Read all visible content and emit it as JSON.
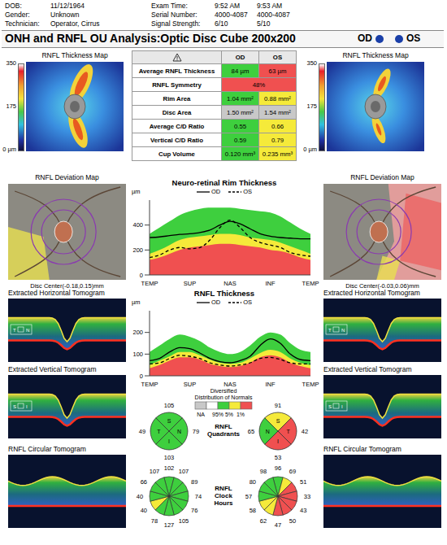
{
  "header": {
    "patient": [
      {
        "label": "DOB:",
        "value": "11/12/1964"
      },
      {
        "label": "Gender:",
        "value": "Unknown"
      },
      {
        "label": "Technician:",
        "value": "Operator, Cirrus"
      }
    ],
    "exam": [
      {
        "label": "Exam Time:",
        "od": "9:52 AM",
        "os": "9:53 AM"
      },
      {
        "label": "Serial Number:",
        "od": "4000-4087",
        "os": "4000-4087"
      },
      {
        "label": "Signal Strength:",
        "od": "6/10",
        "os": "5/10"
      }
    ]
  },
  "title": "ONH and RNFL OU Analysis:Optic Disc Cube 200x200",
  "panel_titles": {
    "thickness_map": "RNFL Thickness Map",
    "deviation_map": "RNFL Deviation Map",
    "horizontal_tomogram": "Extracted Horizontal Tomogram",
    "vertical_tomogram": "Extracted Vertical Tomogram",
    "circular_tomogram": "RNFL Circular Tomogram"
  },
  "thickness_colorbar": {
    "range": [
      0,
      350
    ],
    "ticks": [
      350,
      175,
      {
        "value": 0,
        "label": "0 µm"
      }
    ]
  },
  "tomogram_marks": {
    "horizontal": [
      "T",
      "N"
    ],
    "vertical": [
      "S",
      "I"
    ]
  },
  "table": {
    "rows": [
      {
        "label": "Average RNFL Thickness",
        "cells": [
          {
            "text": "84 µm",
            "color": "#3ecf3e"
          },
          {
            "text": "63 µm",
            "color": "#f05050"
          }
        ]
      },
      {
        "label": "RNFL Symmetry",
        "cells": [
          {
            "text": "48%",
            "color": "#f05050"
          }
        ]
      },
      {
        "label": "Rim Area",
        "cells": [
          {
            "text": "1.04 mm²",
            "color": "#3ecf3e"
          },
          {
            "text": "0.88 mm²",
            "color": "#f5ea3a"
          }
        ]
      },
      {
        "label": "Disc Area",
        "cells": [
          {
            "text": "1.50 mm²",
            "color": "#c8c8c8"
          },
          {
            "text": "1.54 mm²",
            "color": "#c8c8c8"
          }
        ]
      },
      {
        "label": "Average C/D Ratio",
        "cells": [
          {
            "text": "0.55",
            "color": "#3ecf3e"
          },
          {
            "text": "0.66",
            "color": "#f5ea3a"
          }
        ]
      },
      {
        "label": "Vertical C/D Ratio",
        "cells": [
          {
            "text": "0.59",
            "color": "#3ecf3e"
          },
          {
            "text": "0.79",
            "color": "#f5ea3a"
          }
        ]
      },
      {
        "label": "Cup Volume",
        "cells": [
          {
            "text": "0.120 mm³",
            "color": "#3ecf3e"
          },
          {
            "text": "0.235 mm³",
            "color": "#f5ea3a"
          }
        ]
      }
    ]
  },
  "eyes": [
    {
      "name": "OD",
      "disc_center": "Disc Center(-0.18,0.15)mm",
      "quadrants": [
        {
          "label": "S",
          "value": 105,
          "color": "#3ecf3e"
        },
        {
          "label": "N",
          "value": 79,
          "color": "#3ecf3e"
        },
        {
          "label": "I",
          "value": 103,
          "color": "#3ecf3e"
        },
        {
          "label": "T",
          "value": 49,
          "color": "#3ecf3e"
        }
      ],
      "clock_hours": {
        "values": [
          102,
          107,
          89,
          74,
          76,
          105,
          127,
          78,
          40,
          40,
          66,
          107
        ],
        "colors": [
          "#3ecf3e",
          "#3ecf3e",
          "#3ecf3e",
          "#3ecf3e",
          "#3ecf3e",
          "#3ecf3e",
          "#3ecf3e",
          "#3ecf3e",
          "#f5ea3a",
          "#3ecf3e",
          "#3ecf3e",
          "#3ecf3e"
        ]
      }
    },
    {
      "name": "OS",
      "disc_center": "Disc Center(-0.03,0.06)mm",
      "quadrants": [
        {
          "label": "S",
          "value": 91,
          "color": "#f5ea3a"
        },
        {
          "label": "T",
          "value": 42,
          "color": "#f05050"
        },
        {
          "label": "I",
          "value": 53,
          "color": "#f05050"
        },
        {
          "label": "N",
          "value": 65,
          "color": "#3ecf3e"
        }
      ],
      "clock_hours": {
        "values": [
          96,
          69,
          51,
          33,
          43,
          50,
          47,
          62,
          58,
          57,
          80,
          98
        ],
        "colors": [
          "#3ecf3e",
          "#f5ea3a",
          "#f05050",
          "#f05050",
          "#f05050",
          "#f05050",
          "#f05050",
          "#f5ea3a",
          "#f5ea3a",
          "#3ecf3e",
          "#3ecf3e",
          "#3ecf3e"
        ]
      }
    }
  ],
  "quadrants_title": "RNFL Quadrants",
  "clock_hours_title": "RNFL Clock Hours",
  "normals_legend": {
    "title": "Diversified Distribution of Normals",
    "colors": [
      "#c8c8c8",
      "#ffffff",
      "#3ecf3e",
      "#f5ea3a",
      "#f05050"
    ],
    "labels": [
      "NA",
      "95%",
      "5%",
      "1%"
    ]
  },
  "chart_data": [
    {
      "type": "line",
      "title": "Neuro-retinal Rim Thickness",
      "y_label": "µm",
      "legend": "top",
      "categories": [
        "TEMP",
        null,
        null,
        null,
        "SUP",
        null,
        null,
        null,
        "NAS",
        null,
        null,
        null,
        "INF",
        null,
        null,
        null,
        "TEMP"
      ],
      "ylim": [
        0,
        600
      ],
      "yticks": [
        0,
        200,
        400
      ],
      "series": [
        {
          "name": "95%",
          "type": "area",
          "color": "#3ecf3e",
          "values": [
            330,
            380,
            430,
            480,
            510,
            530,
            540,
            540,
            540,
            530,
            520,
            510,
            500,
            470,
            420,
            370,
            330
          ]
        },
        {
          "name": "5%",
          "type": "area",
          "color": "#f5ea3a",
          "values": [
            170,
            200,
            240,
            280,
            300,
            310,
            320,
            330,
            330,
            320,
            300,
            290,
            280,
            260,
            230,
            200,
            170
          ]
        },
        {
          "name": "1%",
          "type": "area",
          "color": "#f05050",
          "values": [
            120,
            140,
            170,
            200,
            220,
            230,
            240,
            250,
            250,
            240,
            230,
            220,
            200,
            190,
            170,
            140,
            120
          ]
        },
        {
          "name": "OD",
          "type": "line",
          "color": "#000000",
          "line_style": "solid",
          "values": [
            300,
            305,
            315,
            325,
            330,
            340,
            360,
            400,
            430,
            410,
            370,
            330,
            310,
            300,
            295,
            290,
            290
          ]
        },
        {
          "name": "OS",
          "type": "line",
          "color": "#000000",
          "line_style": "dashed",
          "values": [
            140,
            160,
            200,
            220,
            210,
            220,
            280,
            380,
            440,
            380,
            300,
            260,
            240,
            220,
            180,
            160,
            150
          ]
        }
      ]
    },
    {
      "type": "line",
      "title": "RNFL Thickness",
      "y_label": "µm",
      "legend": "top",
      "categories": [
        "TEMP",
        null,
        null,
        null,
        "SUP",
        null,
        null,
        null,
        "NAS",
        null,
        null,
        null,
        "INF",
        null,
        null,
        null,
        "TEMP"
      ],
      "ylim": [
        0,
        300
      ],
      "yticks": [
        0,
        100,
        200
      ],
      "series": [
        {
          "name": "95%",
          "type": "area",
          "color": "#3ecf3e",
          "values": [
            110,
            140,
            170,
            190,
            180,
            160,
            130,
            110,
            100,
            110,
            140,
            180,
            200,
            190,
            150,
            120,
            110
          ]
        },
        {
          "name": "5%",
          "type": "area",
          "color": "#f5ea3a",
          "values": [
            50,
            70,
            90,
            110,
            110,
            95,
            75,
            60,
            55,
            60,
            80,
            105,
            120,
            110,
            80,
            60,
            50
          ]
        },
        {
          "name": "1%",
          "type": "area",
          "color": "#f05050",
          "values": [
            35,
            50,
            70,
            85,
            85,
            75,
            55,
            45,
            40,
            45,
            60,
            85,
            95,
            85,
            60,
            45,
            35
          ]
        },
        {
          "name": "OD",
          "type": "line",
          "color": "#000000",
          "line_style": "solid",
          "values": [
            70,
            80,
            110,
            130,
            125,
            105,
            80,
            65,
            60,
            70,
            90,
            140,
            170,
            150,
            100,
            75,
            70
          ]
        },
        {
          "name": "OS",
          "type": "line",
          "color": "#000000",
          "line_style": "dashed",
          "values": [
            55,
            60,
            80,
            95,
            90,
            80,
            60,
            50,
            45,
            50,
            60,
            80,
            85,
            75,
            60,
            55,
            55
          ]
        }
      ]
    }
  ]
}
